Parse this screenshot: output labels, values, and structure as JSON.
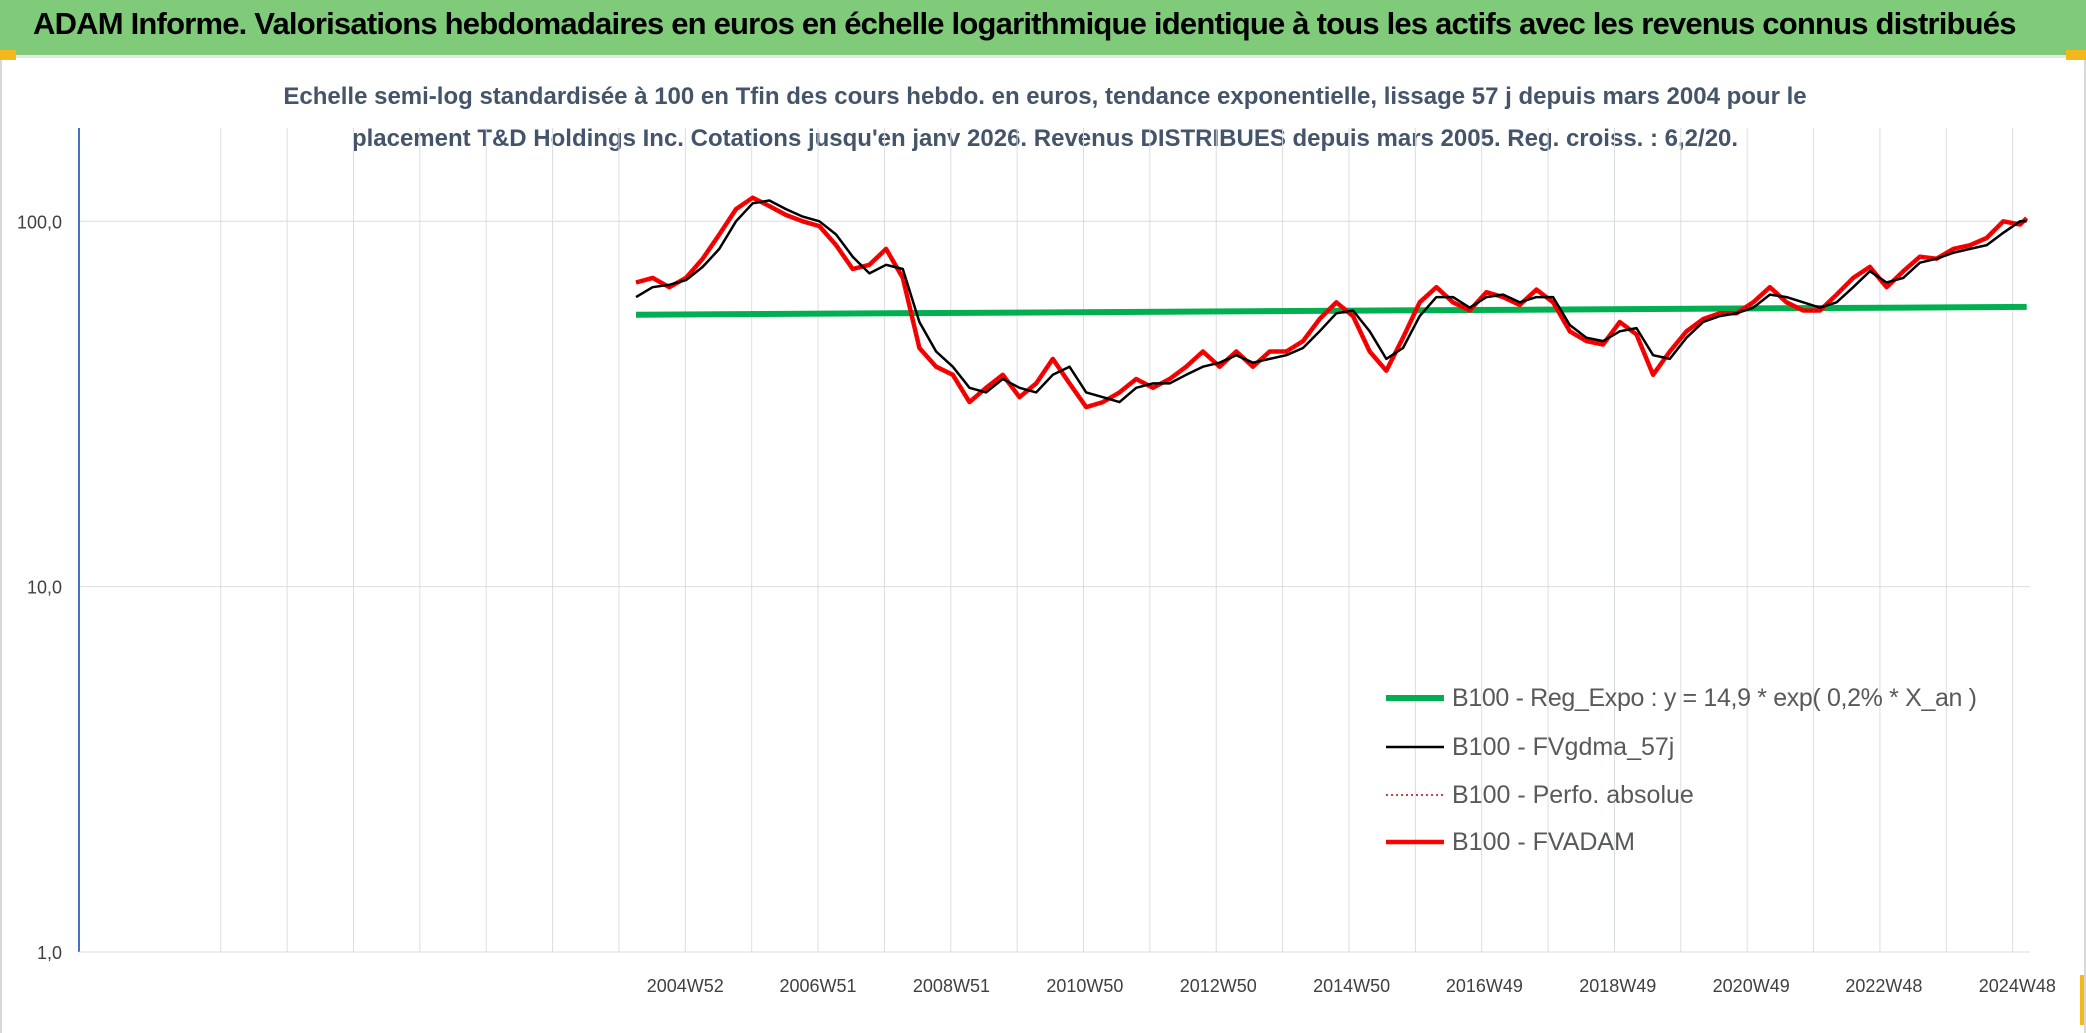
{
  "header": {
    "title": "ADAM Informe. Valorisations hebdomadaires en euros en échelle logarithmique identique à tous les actifs avec les revenus connus distribués"
  },
  "colors": {
    "header_bg": "#7fcb7a",
    "series_green": "#00b050",
    "series_black": "#000000",
    "series_red": "#ff0000",
    "grid": "#d9dde3",
    "axis": "#4472c4",
    "title_text": "#44546a"
  },
  "chart_data": {
    "type": "line",
    "title_lines": [
      "Echelle semi-log standardisée à 100 en Tfin des cours hebdo. en euros, tendance exponentielle, lissage 57 j depuis mars 2004 pour le",
      "placement T&D Holdings Inc. Cotations jusqu'en janv 2026. Revenus DISTRIBUES depuis mars 2005. Reg. croiss. : 6,2/20."
    ],
    "y_scale": "log",
    "ylim": [
      1,
      180
    ],
    "y_ticks": [
      {
        "value": 1,
        "label": "1,0"
      },
      {
        "value": 10,
        "label": "10,0"
      },
      {
        "value": 100,
        "label": "100,0"
      }
    ],
    "xlim": [
      1995.9,
      2025.15
    ],
    "x_ticks": [
      {
        "value": 2004.99,
        "label": "2004W52"
      },
      {
        "value": 2006.98,
        "label": "2006W51"
      },
      {
        "value": 2008.98,
        "label": "2008W51"
      },
      {
        "value": 2010.98,
        "label": "2010W50"
      },
      {
        "value": 2012.98,
        "label": "2012W50"
      },
      {
        "value": 2014.98,
        "label": "2014W50"
      },
      {
        "value": 2016.97,
        "label": "2016W49"
      },
      {
        "value": 2018.97,
        "label": "2018W49"
      },
      {
        "value": 2020.97,
        "label": "2020W49"
      },
      {
        "value": 2022.96,
        "label": "2022W48"
      },
      {
        "value": 2024.96,
        "label": "2024W48"
      }
    ],
    "grid": true,
    "legend_position": "bottom-right",
    "series": [
      {
        "name": "B100 - Reg_Expo : y = 14,9 * exp( 0,2% *  X_an )",
        "style": "solid-thick",
        "color": "#00b050",
        "x": [
          2004.25,
          2025.1
        ],
        "y": [
          55.5,
          58.3
        ]
      },
      {
        "name": "B100 - FVgdma_57j",
        "style": "solid",
        "color": "#000000",
        "x": [
          2004.25,
          2004.5,
          2004.75,
          2005.0,
          2005.25,
          2005.5,
          2005.75,
          2006.0,
          2006.25,
          2006.5,
          2006.75,
          2007.0,
          2007.25,
          2007.5,
          2007.75,
          2008.0,
          2008.25,
          2008.5,
          2008.75,
          2009.0,
          2009.25,
          2009.5,
          2009.75,
          2010.0,
          2010.25,
          2010.5,
          2010.75,
          2011.0,
          2011.25,
          2011.5,
          2011.75,
          2012.0,
          2012.25,
          2012.5,
          2012.75,
          2013.0,
          2013.25,
          2013.5,
          2013.75,
          2014.0,
          2014.25,
          2014.5,
          2014.75,
          2015.0,
          2015.25,
          2015.5,
          2015.75,
          2016.0,
          2016.25,
          2016.5,
          2016.75,
          2017.0,
          2017.25,
          2017.5,
          2017.75,
          2018.0,
          2018.25,
          2018.5,
          2018.75,
          2019.0,
          2019.25,
          2019.5,
          2019.75,
          2020.0,
          2020.25,
          2020.5,
          2020.75,
          2021.0,
          2021.25,
          2021.5,
          2021.75,
          2022.0,
          2022.25,
          2022.5,
          2022.75,
          2023.0,
          2023.25,
          2023.5,
          2023.75,
          2024.0,
          2024.25,
          2024.5,
          2024.75,
          2025.0,
          2025.1
        ],
        "y": [
          62,
          66,
          67,
          69,
          75,
          84,
          100,
          112,
          114,
          108,
          103,
          100,
          92,
          80,
          72,
          76,
          74,
          53,
          44,
          40,
          35,
          34,
          37,
          35,
          34,
          38,
          40,
          34,
          33,
          32,
          35,
          36,
          36,
          38,
          40,
          41,
          43,
          41,
          42,
          43,
          45,
          50,
          56,
          57,
          50,
          42,
          45,
          55,
          62,
          62,
          58,
          62,
          63,
          60,
          62,
          62,
          52,
          48,
          47,
          50,
          51,
          43,
          42,
          48,
          53,
          55,
          56,
          58,
          63,
          62,
          60,
          58,
          60,
          66,
          73,
          68,
          70,
          77,
          79,
          82,
          84,
          86,
          93,
          100,
          100
        ]
      },
      {
        "name": "B100 - Perfo. absolue",
        "style": "dotted",
        "color": "#c00000",
        "x": [
          2004.25,
          2004.5,
          2004.75,
          2005.0,
          2005.25,
          2005.5,
          2005.75,
          2006.0,
          2006.25,
          2006.5,
          2006.75,
          2007.0,
          2007.25,
          2007.5,
          2007.75,
          2008.0,
          2008.25,
          2008.5,
          2008.75,
          2009.0,
          2009.25,
          2009.5,
          2009.75,
          2010.0,
          2010.25,
          2010.5,
          2010.75,
          2011.0,
          2011.25,
          2011.5,
          2011.75,
          2012.0,
          2012.25,
          2012.5,
          2012.75,
          2013.0,
          2013.25,
          2013.5,
          2013.75,
          2014.0,
          2014.25,
          2014.5,
          2014.75,
          2015.0,
          2015.25,
          2015.5,
          2015.75,
          2016.0,
          2016.25,
          2016.5,
          2016.75,
          2017.0,
          2017.25,
          2017.5,
          2017.75,
          2018.0,
          2018.25,
          2018.5,
          2018.75,
          2019.0,
          2019.25,
          2019.5,
          2019.75,
          2020.0,
          2020.25,
          2020.5,
          2020.75,
          2021.0,
          2021.25,
          2021.5,
          2021.75,
          2022.0,
          2022.25,
          2022.5,
          2022.75,
          2023.0,
          2023.25,
          2023.5,
          2023.75,
          2024.0,
          2024.25,
          2024.5,
          2024.75,
          2025.0,
          2025.1
        ],
        "y": [
          68,
          70,
          66,
          70,
          79,
          92,
          108,
          116,
          110,
          104,
          100,
          97,
          86,
          74,
          76,
          84,
          70,
          45,
          40,
          38,
          32,
          35,
          38,
          33,
          36,
          42,
          36,
          31,
          32,
          34,
          37,
          35,
          37,
          40,
          44,
          40,
          44,
          40,
          44,
          44,
          47,
          54,
          60,
          55,
          44,
          39,
          48,
          60,
          66,
          60,
          57,
          64,
          62,
          59,
          65,
          60,
          50,
          47,
          46,
          53,
          49,
          38,
          44,
          50,
          54,
          56,
          56,
          60,
          66,
          60,
          57,
          57,
          63,
          70,
          75,
          66,
          73,
          80,
          79,
          84,
          86,
          90,
          100,
          98,
          102
        ]
      },
      {
        "name": "B100 - FVADAM",
        "style": "solid-thick",
        "color": "#ff0000",
        "x": [
          2004.25,
          2004.5,
          2004.75,
          2005.0,
          2005.25,
          2005.5,
          2005.75,
          2006.0,
          2006.25,
          2006.5,
          2006.75,
          2007.0,
          2007.25,
          2007.5,
          2007.75,
          2008.0,
          2008.25,
          2008.5,
          2008.75,
          2009.0,
          2009.25,
          2009.5,
          2009.75,
          2010.0,
          2010.25,
          2010.5,
          2010.75,
          2011.0,
          2011.25,
          2011.5,
          2011.75,
          2012.0,
          2012.25,
          2012.5,
          2012.75,
          2013.0,
          2013.25,
          2013.5,
          2013.75,
          2014.0,
          2014.25,
          2014.5,
          2014.75,
          2015.0,
          2015.25,
          2015.5,
          2015.75,
          2016.0,
          2016.25,
          2016.5,
          2016.75,
          2017.0,
          2017.25,
          2017.5,
          2017.75,
          2018.0,
          2018.25,
          2018.5,
          2018.75,
          2019.0,
          2019.25,
          2019.5,
          2019.75,
          2020.0,
          2020.25,
          2020.5,
          2020.75,
          2021.0,
          2021.25,
          2021.5,
          2021.75,
          2022.0,
          2022.25,
          2022.5,
          2022.75,
          2023.0,
          2023.25,
          2023.5,
          2023.75,
          2024.0,
          2024.25,
          2024.5,
          2024.75,
          2025.0,
          2025.1
        ],
        "y": [
          68,
          70,
          66,
          70,
          79,
          92,
          108,
          116,
          110,
          104,
          100,
          97,
          86,
          74,
          76,
          84,
          70,
          45,
          40,
          38,
          32,
          35,
          38,
          33,
          36,
          42,
          36,
          31,
          32,
          34,
          37,
          35,
          37,
          40,
          44,
          40,
          44,
          40,
          44,
          44,
          47,
          54,
          60,
          55,
          44,
          39,
          48,
          60,
          66,
          60,
          57,
          64,
          62,
          59,
          65,
          60,
          50,
          47,
          46,
          53,
          49,
          38,
          44,
          50,
          54,
          56,
          56,
          60,
          66,
          60,
          57,
          57,
          63,
          70,
          75,
          66,
          73,
          80,
          79,
          84,
          86,
          90,
          100,
          98,
          102
        ]
      }
    ]
  }
}
